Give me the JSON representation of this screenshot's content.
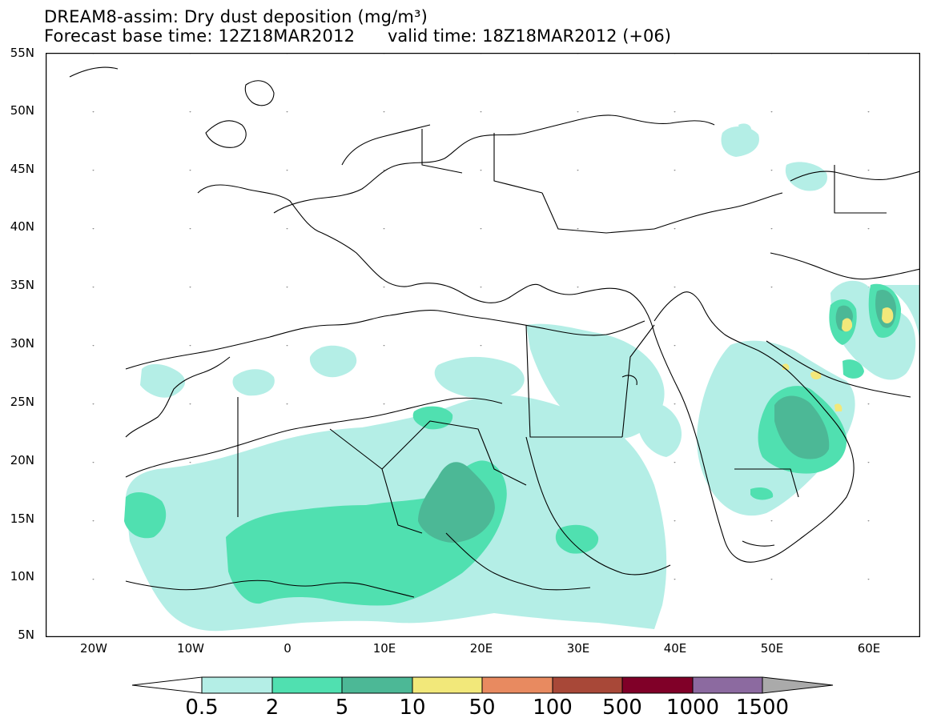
{
  "title": {
    "line1": "DREAM8-assim: Dry dust deposition (mg/m³)",
    "base_time": "Forecast base time: 12Z18MAR2012",
    "valid_time": "valid time: 18Z18MAR2012 (+06)"
  },
  "y_ticks": [
    "55N",
    "50N",
    "45N",
    "40N",
    "35N",
    "30N",
    "25N",
    "20N",
    "15N",
    "10N",
    "5N"
  ],
  "x_ticks": [
    "20W",
    "10W",
    "0",
    "10E",
    "20E",
    "30E",
    "40E",
    "50E",
    "60E"
  ],
  "colorbar": {
    "labels": [
      "0.5",
      "2",
      "5",
      "10",
      "50",
      "100",
      "500",
      "1000",
      "1500"
    ],
    "colors": [
      "#b4eee6",
      "#50e0b0",
      "#4cb896",
      "#f2e87a",
      "#e88a60",
      "#a84838",
      "#800028",
      "#8c6aa0",
      "#aaaaaa"
    ]
  },
  "map": {
    "lon_range": [
      -25,
      65
    ],
    "lat_range": [
      5,
      55
    ]
  }
}
